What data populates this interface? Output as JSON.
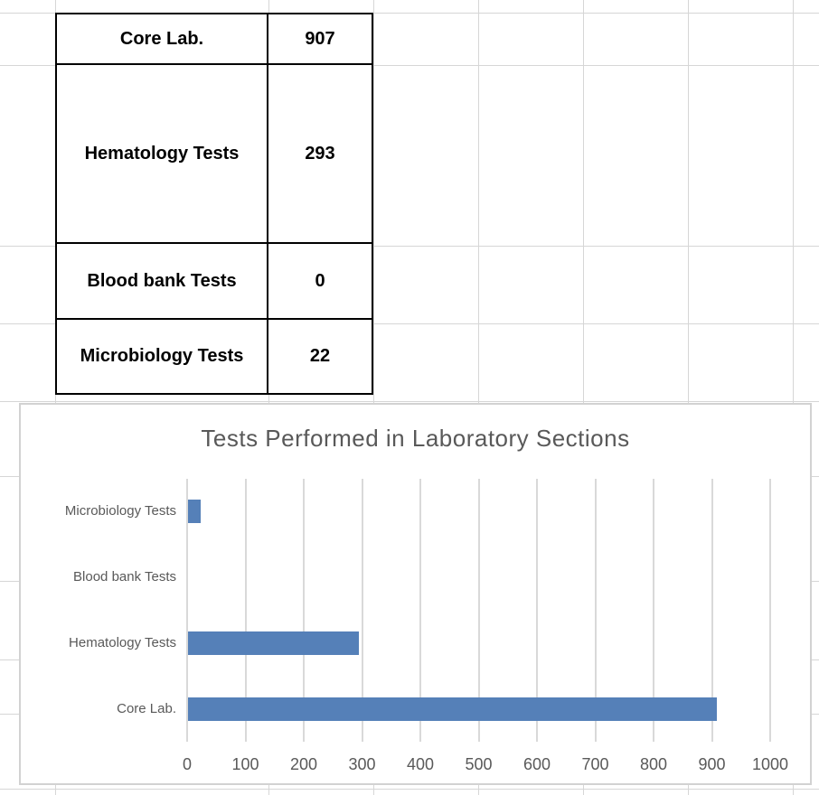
{
  "sheet": {
    "gridline_color": "#d6d6d6",
    "column_lines_x": [
      61,
      297,
      413,
      529,
      645,
      761,
      877
    ],
    "row_lines_y": [
      14,
      72,
      272,
      358,
      444,
      527,
      643,
      730,
      790,
      873
    ]
  },
  "table": {
    "rows": [
      {
        "label": "Core Lab.",
        "value": "907"
      },
      {
        "label": "Hematology Tests",
        "value": "293"
      },
      {
        "label": "Blood bank Tests",
        "value": "0"
      },
      {
        "label": "Microbiology Tests",
        "value": "22"
      }
    ]
  },
  "chart_data": {
    "type": "bar",
    "orientation": "horizontal",
    "title": "Tests Performed in Laboratory Sections",
    "categories": [
      "Core Lab.",
      "Hematology Tests",
      "Blood bank Tests",
      "Microbiology Tests"
    ],
    "values": [
      907,
      293,
      0,
      22
    ],
    "category_axis_order": "first category at bottom",
    "xlabel": "",
    "ylabel": "",
    "xlim": [
      0,
      1000
    ],
    "x_ticks": [
      0,
      100,
      200,
      300,
      400,
      500,
      600,
      700,
      800,
      900,
      1000
    ],
    "grid": true,
    "legend": false,
    "bar_color": "#5580b8",
    "plot_gridline_color": "#d9d9d9",
    "text_color": "#595959",
    "title_color": "#595959"
  }
}
